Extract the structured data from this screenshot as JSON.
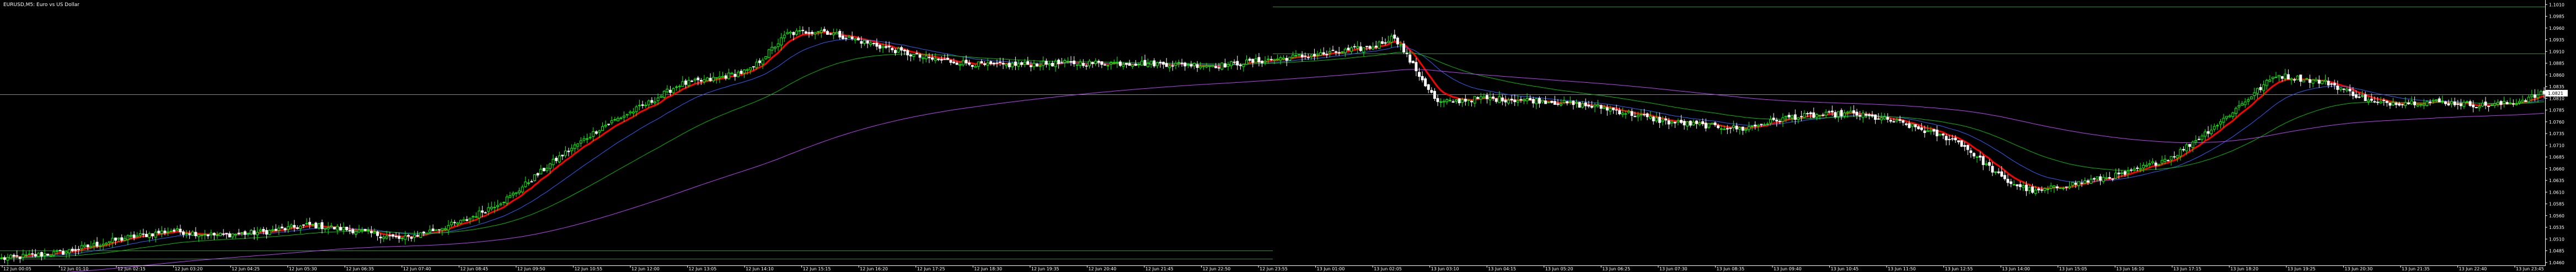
{
  "window": {
    "title": "EURUSD,M5: Euro vs US Dollar"
  },
  "colors": {
    "background": "#000000",
    "bull_candle": "#00ff00",
    "bear_candle": "#ffffff",
    "ma_fast": "#ff0000",
    "ma_mid": "#3060ff",
    "ma_slow": "#00c000",
    "ma_long": "#c040ff",
    "level_line": "#2e8b2e",
    "bid_line": "#8a8a8a",
    "axis_text": "#ffffff"
  },
  "chart_data": {
    "type": "candlestick",
    "title": "",
    "ylim": [
      1.0455,
      1.1015
    ],
    "price_ticks": [
      "1.1010",
      "1.0985",
      "1.0960",
      "1.0935",
      "1.0910",
      "1.0885",
      "1.0860",
      "1.0835",
      "1.0810",
      "1.0785",
      "1.0760",
      "1.0735",
      "1.0710",
      "1.0685",
      "1.0660",
      "1.0635",
      "1.0610",
      "1.0585",
      "1.0560",
      "1.0535",
      "1.0510",
      "1.0485",
      "1.0460"
    ],
    "current_price": "1.0821",
    "time_ticks": [
      "12 Jun 00:05",
      "12 Jun 01:10",
      "12 Jun 02:15",
      "12 Jun 03:20",
      "12 Jun 04:25",
      "12 Jun 05:30",
      "12 Jun 06:35",
      "12 Jun 07:40",
      "12 Jun 08:45",
      "12 Jun 09:50",
      "12 Jun 10:55",
      "12 Jun 12:00",
      "12 Jun 13:05",
      "12 Jun 14:10",
      "12 Jun 15:15",
      "12 Jun 16:20",
      "12 Jun 17:25",
      "12 Jun 18:30",
      "12 Jun 19:35",
      "12 Jun 20:40",
      "12 Jun 21:45",
      "12 Jun 22:50",
      "12 Jun 23:55",
      "13 Jun 01:00",
      "13 Jun 02:05",
      "13 Jun 03:10",
      "13 Jun 04:15",
      "13 Jun 05:20",
      "13 Jun 06:25",
      "13 Jun 07:30",
      "13 Jun 08:35",
      "13 Jun 09:40",
      "13 Jun 10:45",
      "13 Jun 11:50",
      "13 Jun 12:55",
      "13 Jun 14:00",
      "13 Jun 15:05",
      "13 Jun 16:10",
      "13 Jun 17:15",
      "13 Jun 18:20",
      "13 Jun 19:25",
      "13 Jun 20:30",
      "13 Jun 21:35",
      "13 Jun 22:40",
      "13 Jun 23:45"
    ],
    "horizontal_levels": [
      {
        "price": 1.1006,
        "segment": "right"
      },
      {
        "price": 1.0905,
        "segment": "right"
      },
      {
        "price": 1.0818,
        "segment": "full"
      },
      {
        "price": 1.0486,
        "segment": "left"
      },
      {
        "price": 1.0468,
        "segment": "left"
      }
    ],
    "price_keyframes": [
      [
        0,
        1.0468
      ],
      [
        20,
        1.0482
      ],
      [
        40,
        1.0512
      ],
      [
        55,
        1.0528
      ],
      [
        70,
        1.0518
      ],
      [
        85,
        1.0525
      ],
      [
        100,
        1.054
      ],
      [
        115,
        1.0528
      ],
      [
        130,
        1.051
      ],
      [
        150,
        1.0548
      ],
      [
        165,
        1.06
      ],
      [
        180,
        1.068
      ],
      [
        195,
        1.075
      ],
      [
        210,
        1.08
      ],
      [
        220,
        1.084
      ],
      [
        230,
        1.085
      ],
      [
        243,
        1.087
      ],
      [
        255,
        1.0948
      ],
      [
        266,
        1.0955
      ],
      [
        280,
        1.093
      ],
      [
        300,
        1.0895
      ],
      [
        320,
        1.088
      ],
      [
        345,
        1.0885
      ],
      [
        370,
        1.0885
      ],
      [
        395,
        1.088
      ],
      [
        415,
        1.0895
      ],
      [
        430,
        1.0905
      ],
      [
        445,
        1.092
      ],
      [
        452,
        1.0942
      ],
      [
        458,
        1.088
      ],
      [
        466,
        1.08
      ],
      [
        480,
        1.081
      ],
      [
        500,
        1.0805
      ],
      [
        520,
        1.079
      ],
      [
        540,
        1.076
      ],
      [
        565,
        1.0745
      ],
      [
        580,
        1.077
      ],
      [
        600,
        1.0778
      ],
      [
        615,
        1.076
      ],
      [
        635,
        1.0718
      ],
      [
        650,
        1.0635
      ],
      [
        660,
        1.061
      ],
      [
        670,
        1.0625
      ],
      [
        690,
        1.065
      ],
      [
        705,
        1.0688
      ],
      [
        720,
        1.076
      ],
      [
        738,
        1.086
      ],
      [
        755,
        1.0843
      ],
      [
        770,
        1.08
      ],
      [
        790,
        1.0803
      ],
      [
        805,
        1.0795
      ],
      [
        815,
        1.08
      ],
      [
        825,
        1.0821
      ]
    ],
    "moving_averages": [
      {
        "name": "",
        "period": 8,
        "color": "#ff0000",
        "width": 3
      },
      {
        "name": "",
        "period": 25,
        "color": "#3060ff",
        "width": 1
      },
      {
        "name": "",
        "period": 60,
        "color": "#00c000",
        "width": 1
      },
      {
        "name": "",
        "period": 200,
        "color": "#c040ff",
        "width": 1
      }
    ]
  }
}
